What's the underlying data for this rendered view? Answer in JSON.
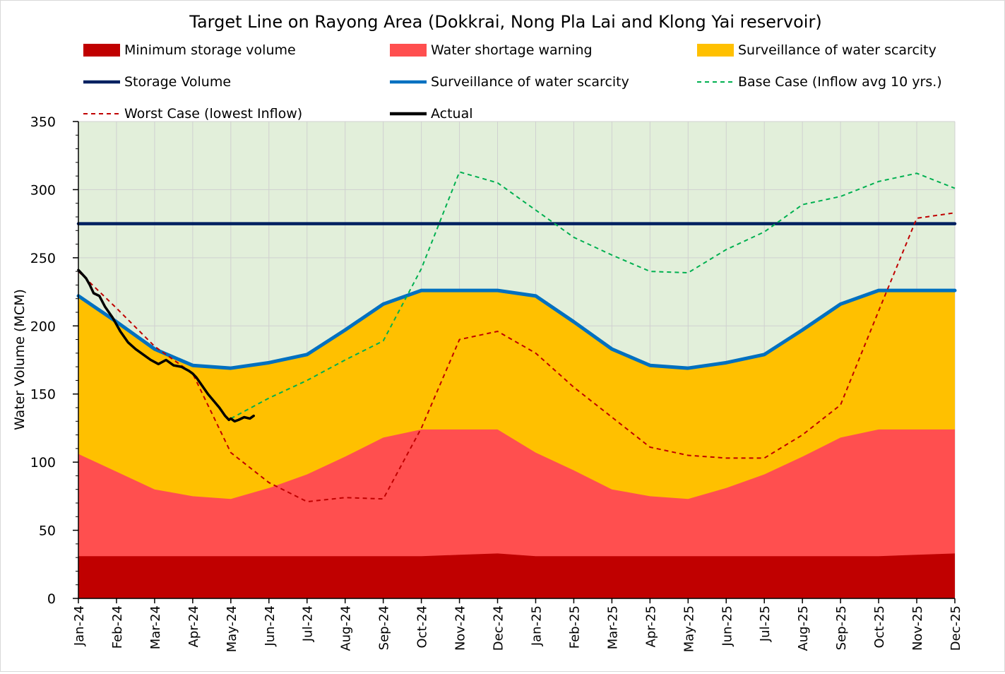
{
  "chart_data": {
    "type": "area",
    "title": "Target Line on Rayong Area (Dokkrai, Nong Pla Lai and Klong Yai reservoir)",
    "xlabel": "",
    "ylabel": "Water Volume (MCM)",
    "ylim": [
      0,
      350
    ],
    "yticks": [
      0,
      50,
      100,
      150,
      200,
      250,
      300,
      350
    ],
    "grid": true,
    "legend_position": "top",
    "categories": [
      "Jan-24",
      "Feb-24",
      "Mar-24",
      "Apr-24",
      "May-24",
      "Jun-24",
      "Jul-24",
      "Aug-24",
      "Sep-24",
      "Oct-24",
      "Nov-24",
      "Dec-24",
      "Jan-25",
      "Feb-25",
      "Mar-25",
      "Apr-25",
      "May-25",
      "Jun-25",
      "Jul-25",
      "Aug-25",
      "Sep-25",
      "Oct-25",
      "Nov-25",
      "Dec-25"
    ],
    "background_color": "#e2efda",
    "areas": [
      {
        "name": "Surveillance of water scarcity",
        "color": "#ffc000",
        "values": [
          222,
          203,
          183,
          171,
          169,
          173,
          179,
          197,
          216,
          226,
          226,
          226,
          222,
          203,
          183,
          171,
          169,
          173,
          179,
          197,
          216,
          226,
          226,
          226
        ]
      },
      {
        "name": "Water shortage warning",
        "color": "#ff4f4f",
        "values": [
          106,
          93,
          80,
          75,
          73,
          81,
          91,
          104,
          118,
          124,
          124,
          124,
          107,
          94,
          80,
          75,
          73,
          81,
          91,
          104,
          118,
          124,
          124,
          124
        ]
      },
      {
        "name": "Minimum storage volume",
        "color": "#c00000",
        "values": [
          31,
          31,
          31,
          31,
          31,
          31,
          31,
          31,
          31,
          31,
          32,
          33,
          31,
          31,
          31,
          31,
          31,
          31,
          31,
          31,
          31,
          31,
          32,
          33
        ]
      }
    ],
    "series": [
      {
        "name": "Storage Volume",
        "color": "#002060",
        "style": "solid",
        "values": [
          275,
          275,
          275,
          275,
          275,
          275,
          275,
          275,
          275,
          275,
          275,
          275,
          275,
          275,
          275,
          275,
          275,
          275,
          275,
          275,
          275,
          275,
          275,
          275
        ]
      },
      {
        "name": "Surveillance of water scarcity",
        "color": "#0070c0",
        "style": "solid",
        "values": [
          222,
          203,
          183,
          171,
          169,
          173,
          179,
          197,
          216,
          226,
          226,
          226,
          222,
          203,
          183,
          171,
          169,
          173,
          179,
          197,
          216,
          226,
          226,
          226
        ]
      },
      {
        "name": "Base Case (Inflow avg 10 yrs.)",
        "color": "#00b050",
        "style": "dashed",
        "x": [
          4,
          5,
          6,
          7,
          8,
          9,
          10,
          11,
          12,
          13,
          14,
          15,
          16,
          17,
          18,
          19,
          20,
          21,
          22,
          23
        ],
        "values": [
          132,
          147,
          160,
          175,
          189,
          242,
          313,
          305,
          285,
          265,
          252,
          240,
          239,
          256,
          269,
          289,
          295,
          306,
          312,
          301
        ]
      },
      {
        "name": "Worst Case (lowest Inflow)",
        "color": "#c00000",
        "style": "dashed",
        "x": [
          0,
          1,
          2,
          3,
          4,
          5,
          6,
          7,
          8,
          9,
          10,
          11,
          12,
          13,
          14,
          15,
          16,
          17,
          18,
          19,
          20,
          21,
          22,
          23
        ],
        "values": [
          240,
          213,
          185,
          165,
          107,
          85,
          71,
          74,
          73,
          125,
          190,
          196,
          180,
          155,
          133,
          111,
          105,
          103,
          103,
          120,
          142,
          211,
          279,
          283
        ]
      },
      {
        "name": "Actual",
        "color": "#000000",
        "style": "solid",
        "x": [
          0,
          0.1,
          0.2,
          0.3,
          0.4,
          0.55,
          0.7,
          0.8,
          0.9,
          1.0,
          1.1,
          1.3,
          1.5,
          1.7,
          1.9,
          2.1,
          2.3,
          2.5,
          2.7,
          2.9,
          3.0,
          3.1,
          3.25,
          3.4,
          3.55,
          3.7,
          3.85,
          3.95,
          4.0,
          4.1,
          4.2,
          4.35,
          4.5,
          4.6
        ],
        "values": [
          241,
          238,
          235,
          230,
          224,
          222,
          214,
          210,
          206,
          201,
          196,
          188,
          183,
          179,
          175,
          172,
          175,
          171,
          170,
          167,
          165,
          162,
          156,
          150,
          145,
          140,
          134,
          131,
          132,
          130,
          131,
          133,
          132,
          134
        ]
      }
    ],
    "legend": [
      {
        "label": "Minimum storage volume",
        "kind": "box",
        "color": "#c00000"
      },
      {
        "label": "Water shortage warning",
        "kind": "box",
        "color": "#ff4f4f"
      },
      {
        "label": "Surveillance of water scarcity",
        "kind": "box",
        "color": "#ffc000"
      },
      {
        "label": "Storage Volume",
        "kind": "line",
        "color": "#002060",
        "style": "solid"
      },
      {
        "label": "Surveillance of water scarcity",
        "kind": "line",
        "color": "#0070c0",
        "style": "solid"
      },
      {
        "label": "Base Case (Inflow avg 10 yrs.)",
        "kind": "line",
        "color": "#00b050",
        "style": "dashed"
      },
      {
        "label": "Worst Case (lowest Inflow)",
        "kind": "line",
        "color": "#c00000",
        "style": "dashed"
      },
      {
        "label": "Actual",
        "kind": "line",
        "color": "#000000",
        "style": "solid"
      }
    ]
  }
}
